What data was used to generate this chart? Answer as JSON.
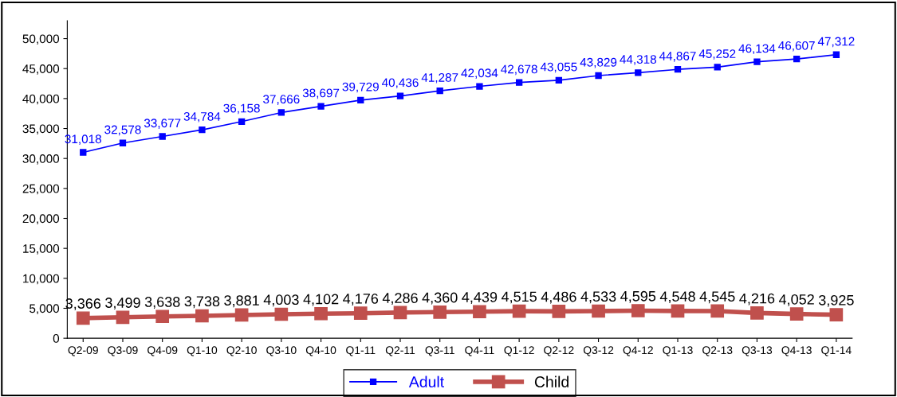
{
  "chart_data": {
    "type": "line",
    "categories": [
      "Q2-09",
      "Q3-09",
      "Q4-09",
      "Q1-10",
      "Q2-10",
      "Q3-10",
      "Q4-10",
      "Q1-11",
      "Q2-11",
      "Q3-11",
      "Q4-11",
      "Q1-12",
      "Q2-12",
      "Q3-12",
      "Q4-12",
      "Q1-13",
      "Q2-13",
      "Q3-13",
      "Q4-13",
      "Q1-14"
    ],
    "series": [
      {
        "name": "Adult",
        "color": "#0000ff",
        "values": [
          31018,
          32578,
          33677,
          34784,
          36158,
          37666,
          38697,
          39729,
          40436,
          41287,
          42034,
          42678,
          43055,
          43829,
          44318,
          44867,
          45252,
          46134,
          46607,
          47312
        ],
        "value_labels": [
          "31,018",
          "32,578",
          "33,677",
          "34,784",
          "36,158",
          "37,666",
          "38,697",
          "39,729",
          "40,436",
          "41,287",
          "42,034",
          "42,678",
          "43,055",
          "43,829",
          "44,318",
          "44,867",
          "45,252",
          "46,134",
          "46,607",
          "47,312"
        ]
      },
      {
        "name": "Child",
        "color": "#c0504d",
        "values": [
          3366,
          3499,
          3638,
          3738,
          3881,
          4003,
          4102,
          4176,
          4286,
          4360,
          4439,
          4515,
          4486,
          4533,
          4595,
          4548,
          4545,
          4216,
          4052,
          3925
        ],
        "value_labels": [
          "3,366",
          "3,499",
          "3,638",
          "3,738",
          "3,881",
          "4,003",
          "4,102",
          "4,176",
          "4,286",
          "4,360",
          "4,439",
          "4,515",
          "4,486",
          "4,533",
          "4,595",
          "4,548",
          "4,545",
          "4,216",
          "4,052",
          "3,925"
        ]
      }
    ],
    "ylim": [
      0,
      53000
    ],
    "yticks": [
      0,
      {
        "value": 5000,
        "label": "5,000"
      },
      {
        "value": 10000,
        "label": "10,000"
      },
      {
        "value": 15000,
        "label": "15,000"
      },
      {
        "value": 20000,
        "label": "20,000"
      },
      {
        "value": 25000,
        "label": "25,000"
      },
      {
        "value": 30000,
        "label": "30,000"
      },
      {
        "value": 35000,
        "label": "35,000"
      },
      {
        "value": 40000,
        "label": "40,000"
      },
      {
        "value": 45000,
        "label": "45,000"
      },
      {
        "value": 50000,
        "label": "50,000"
      }
    ],
    "marker": "square",
    "line_style": "solid",
    "legend": "bottom",
    "grid": false
  }
}
